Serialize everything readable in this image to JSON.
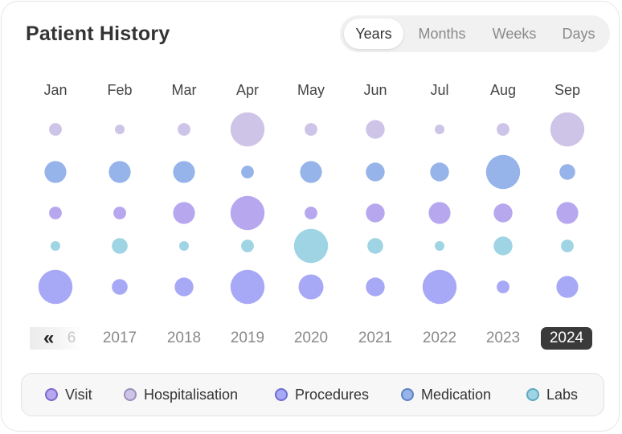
{
  "header": {
    "title": "Patient History"
  },
  "range_tabs": [
    {
      "label": "Years",
      "active": true
    },
    {
      "label": "Months",
      "active": false
    },
    {
      "label": "Weeks",
      "active": false
    },
    {
      "label": "Days",
      "active": false
    }
  ],
  "months": [
    "Jan",
    "Feb",
    "Mar",
    "Apr",
    "May",
    "Jun",
    "Jul",
    "Aug",
    "Sep"
  ],
  "years": {
    "prev_icon": "double-chevron-left-icon",
    "prev_partial": "6",
    "items": [
      "2017",
      "2018",
      "2019",
      "2020",
      "2021",
      "2022",
      "2023",
      "2024"
    ],
    "selected": "2024"
  },
  "legend": [
    {
      "label": "Visit",
      "color": "#b7a7ef",
      "border": "#7d68c9"
    },
    {
      "label": "Hospitalisation",
      "color": "#cec4e8",
      "border": "#9b8fb9"
    },
    {
      "label": "Procedures",
      "color": "#a7a8f6",
      "border": "#6d6ed2"
    },
    {
      "label": "Medication",
      "color": "#96b3ea",
      "border": "#5f83c3"
    },
    {
      "label": "Labs",
      "color": "#9fd4e4",
      "border": "#5ea8c0"
    }
  ],
  "chart_data": {
    "type": "scatter",
    "categories": [
      "Jan",
      "Feb",
      "Mar",
      "Apr",
      "May",
      "Jun",
      "Jul",
      "Aug",
      "Sep"
    ],
    "size_units": "relative",
    "series": [
      {
        "name": "Hospitalisation",
        "color": "#cec4e8",
        "values": [
          2,
          1,
          2,
          9,
          2,
          4,
          1,
          2,
          9
        ]
      },
      {
        "name": "Medication",
        "color": "#96b3ea",
        "values": [
          5,
          5,
          5,
          2,
          5,
          4,
          4,
          9,
          3
        ]
      },
      {
        "name": "Visit",
        "color": "#b7a7ef",
        "values": [
          2,
          2,
          5,
          9,
          2,
          4,
          5,
          4,
          5
        ]
      },
      {
        "name": "Labs",
        "color": "#9fd4e4",
        "values": [
          1,
          3,
          1,
          2,
          9,
          3,
          1,
          4,
          2
        ]
      },
      {
        "name": "Procedures",
        "color": "#a7a8f6",
        "values": [
          9,
          3,
          4,
          9,
          6,
          4,
          9,
          2,
          5
        ]
      }
    ]
  }
}
